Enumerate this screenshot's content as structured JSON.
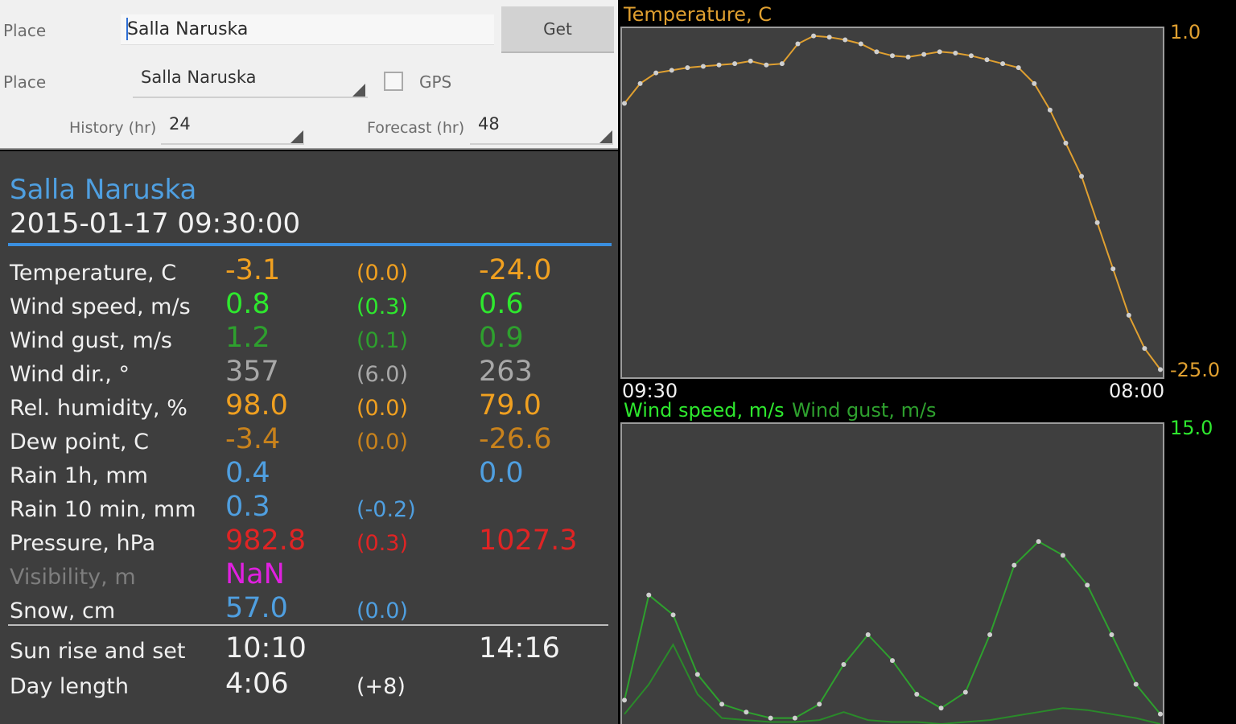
{
  "form": {
    "place_label": "Place",
    "place_input_value": "Salla Naruska",
    "get_label": "Get",
    "place_select_label": "Place",
    "place_select_value": "Salla Naruska",
    "gps_label": "GPS",
    "gps_checked": false,
    "history_label": "History (hr)",
    "history_value": "24",
    "forecast_label": "Forecast (hr)",
    "forecast_value": "48"
  },
  "station": {
    "name": "Salla Naruska",
    "timestamp": "2015-01-17 09:30:00"
  },
  "observations": [
    {
      "label": "Temperature, C",
      "value": "-3.1",
      "delta": "(0.0)",
      "extreme": "-24.0",
      "color": "#f0a020"
    },
    {
      "label": "Wind speed, m/s",
      "value": "0.8",
      "delta": "(0.3)",
      "extreme": "0.6",
      "color": "#2ee82e"
    },
    {
      "label": "Wind gust, m/s",
      "value": "1.2",
      "delta": "(0.1)",
      "extreme": "0.9",
      "color": "#2ea02e"
    },
    {
      "label": "Wind dir., °",
      "value": "357",
      "delta": "(6.0)",
      "extreme": "263",
      "color": "#a8a8a8"
    },
    {
      "label": "Rel. humidity, %",
      "value": "98.0",
      "delta": "(0.0)",
      "extreme": "79.0",
      "color": "#f0a020"
    },
    {
      "label": "Dew point, C",
      "value": "-3.4",
      "delta": "(0.0)",
      "extreme": "-26.6",
      "color": "#c8821c"
    },
    {
      "label": "Rain 1h, mm",
      "value": "0.4",
      "delta": "",
      "extreme": "0.0",
      "color": "#4f9fe0"
    },
    {
      "label": "Rain 10 min, mm",
      "value": "0.3",
      "delta": "(-0.2)",
      "extreme": "",
      "color": "#4f9fe0"
    },
    {
      "label": "Pressure, hPa",
      "value": "982.8",
      "delta": "(0.3)",
      "extreme": "1027.3",
      "color": "#e02424"
    },
    {
      "label": "Visibility, m",
      "value": "NaN",
      "delta": "",
      "extreme": "",
      "color": "#e020e0",
      "label_dim": true
    },
    {
      "label": "Snow, cm",
      "value": "57.0",
      "delta": "(0.0)",
      "extreme": "",
      "color": "#4f9fe0"
    }
  ],
  "sun": {
    "label": "Sun rise and set",
    "rise": "10:10",
    "set": "14:16"
  },
  "day": {
    "label": "Day length",
    "value": "4:06",
    "delta": "(+8)"
  },
  "chart_data": [
    {
      "type": "line",
      "title": "Temperature, C",
      "color": "#e0a030",
      "x_start": "09:30",
      "x_end": "08:00",
      "ylim": [
        -25.0,
        1.0
      ],
      "y_max_label": "1.0",
      "y_min_label": "-25.0",
      "grid": false,
      "series": [
        {
          "values": [
            -4.5,
            -3.0,
            -2.2,
            -2.0,
            -1.8,
            -1.7,
            -1.6,
            -1.5,
            -1.3,
            -1.6,
            -1.5,
            0.0,
            0.6,
            0.5,
            0.3,
            0.0,
            -0.6,
            -0.9,
            -1.0,
            -0.8,
            -0.6,
            -0.7,
            -0.9,
            -1.2,
            -1.5,
            -1.8,
            -3.0,
            -5.0,
            -7.5,
            -10.0,
            -13.5,
            -17.0,
            -20.5,
            -23.0,
            -24.6
          ]
        }
      ]
    },
    {
      "type": "line",
      "title_speed": "Wind speed, m/s",
      "title_gust": "Wind gust, m/s",
      "ylim": [
        0,
        15.0
      ],
      "y_max_label": "15.0",
      "grid": false,
      "series": [
        {
          "name": "Wind speed, m/s",
          "color": "#2a8a2a",
          "values": [
            0.5,
            2.0,
            4.0,
            1.5,
            0.3,
            0.2,
            0.1,
            0.1,
            0.2,
            0.6,
            0.2,
            0.1,
            0.1,
            0.0,
            0.1,
            0.2,
            0.4,
            0.6,
            0.8,
            0.7,
            0.5,
            0.3,
            0.0
          ]
        },
        {
          "name": "Wind gust, m/s",
          "color": "#2ea02e",
          "values": [
            1.2,
            6.5,
            5.5,
            2.5,
            1.0,
            0.6,
            0.3,
            0.3,
            1.0,
            3.0,
            4.5,
            3.2,
            1.5,
            0.8,
            1.6,
            4.5,
            8.0,
            9.2,
            8.5,
            7.0,
            4.5,
            2.0,
            0.5
          ]
        }
      ]
    }
  ]
}
